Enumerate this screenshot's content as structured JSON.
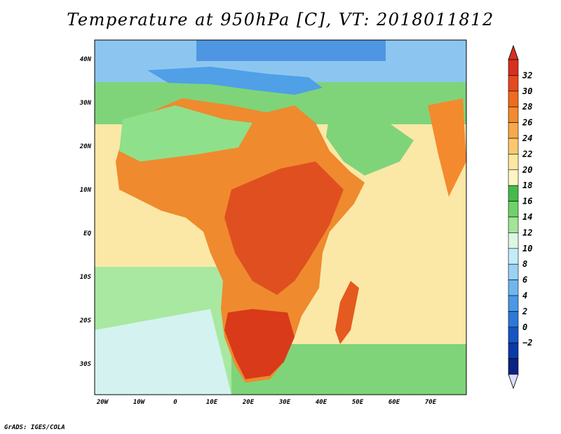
{
  "title": "Temperature at 950hPa [C], VT: 2018011812",
  "credit": "GrADS: IGES/COLA",
  "axes": {
    "lon_labels": [
      "20W",
      "10W",
      "0",
      "10E",
      "20E",
      "30E",
      "40E",
      "50E",
      "60E",
      "70E"
    ],
    "lat_labels": [
      "40N",
      "30N",
      "20N",
      "10N",
      "EQ",
      "10S",
      "20S",
      "30S"
    ]
  },
  "colorbar": {
    "labels": [
      "32",
      "30",
      "28",
      "26",
      "24",
      "22",
      "20",
      "18",
      "16",
      "14",
      "12",
      "10",
      "8",
      "6",
      "4",
      "2",
      "0",
      "−2"
    ],
    "colors": [
      "#d7301f",
      "#e34a1f",
      "#ef6b1f",
      "#f48a2e",
      "#f7a84a",
      "#fbc86f",
      "#fde7a0",
      "#fdf5c4",
      "#44ba4a",
      "#6fd16a",
      "#a2e596",
      "#ddf7e4",
      "#c3ecf8",
      "#9ad2f4",
      "#6eb6ee",
      "#4b98e6",
      "#2c78d8",
      "#1656c4",
      "#0b3aa6",
      "#0a2380"
    ],
    "over_color": "#d7301f",
    "under_color": "#dcdcff"
  },
  "map": {
    "ocean_color": "#fbe8a6",
    "land_color": "#ef8a2e",
    "hot_color": "#d93a1a",
    "cool_land_color": "#8fe08a",
    "mediterranean_color": "#4fa0e6",
    "south_ocean_color": "#a8e8a0",
    "cold_ocean_color": "#d4f3f0"
  }
}
